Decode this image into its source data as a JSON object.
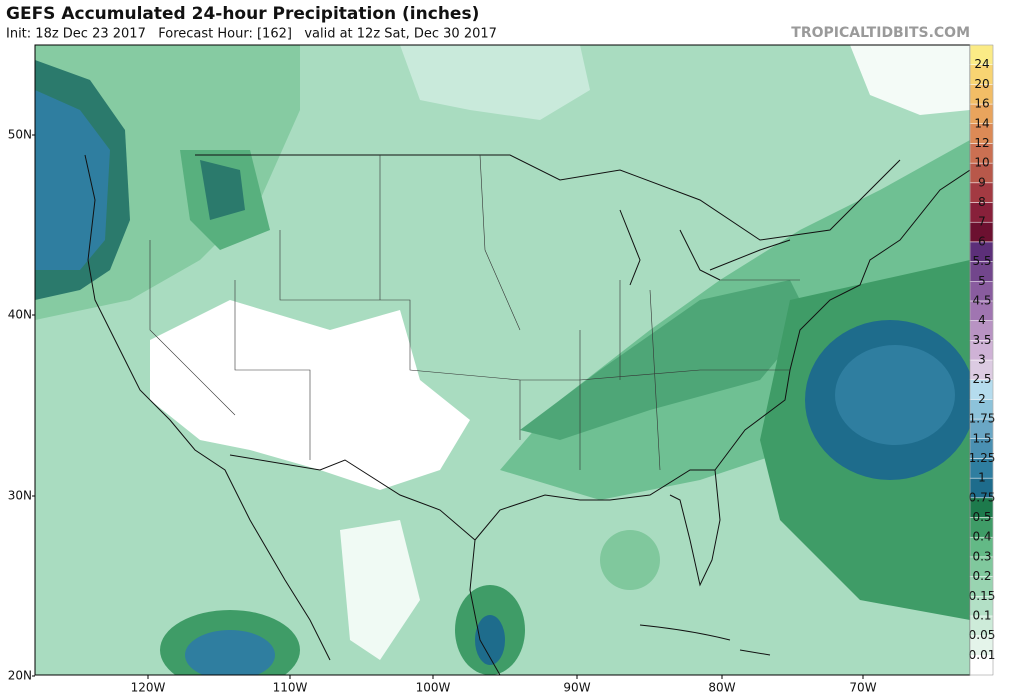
{
  "header": {
    "title": "GEFS Accumulated 24-hour Precipitation (inches)",
    "subtitle": "Init: 18z Dec 23 2017   Forecast Hour: [162]   valid at 12z Sat, Dec 30 2017",
    "watermark": "TROPICALTIDBITS.COM"
  },
  "map": {
    "lat_labels": [
      "50N",
      "40N",
      "30N",
      "20N"
    ],
    "lon_labels": [
      "120W",
      "110W",
      "100W",
      "90W",
      "80W",
      "70W"
    ]
  },
  "colorbar": {
    "levels": [
      0.01,
      0.05,
      0.1,
      0.15,
      0.2,
      0.3,
      0.4,
      0.5,
      0.75,
      1,
      1.25,
      1.5,
      1.75,
      2,
      2.5,
      3,
      3.5,
      4,
      4.5,
      5,
      5.5,
      6,
      7,
      8,
      9,
      10,
      12,
      14,
      16,
      20,
      24
    ],
    "colors": [
      "#ffffff",
      "#e4f4ea",
      "#cdebd9",
      "#b3e0c6",
      "#99d4b1",
      "#80c89d",
      "#63b986",
      "#3f9c67",
      "#1d7a4c",
      "#1e6c8c",
      "#2f7ea0",
      "#4a90b2",
      "#6aa7c5",
      "#8dc3da",
      "#b5dcee",
      "#dccbe2",
      "#cfb2d6",
      "#b893c3",
      "#a075b1",
      "#895c9f",
      "#72468c",
      "#5c2f79",
      "#6c1030",
      "#88203a",
      "#a33a42",
      "#b8584a",
      "#cb7052",
      "#dc8a56",
      "#e9a45d",
      "#f2bd66",
      "#f8d472",
      "#fbeb86"
    ]
  }
}
